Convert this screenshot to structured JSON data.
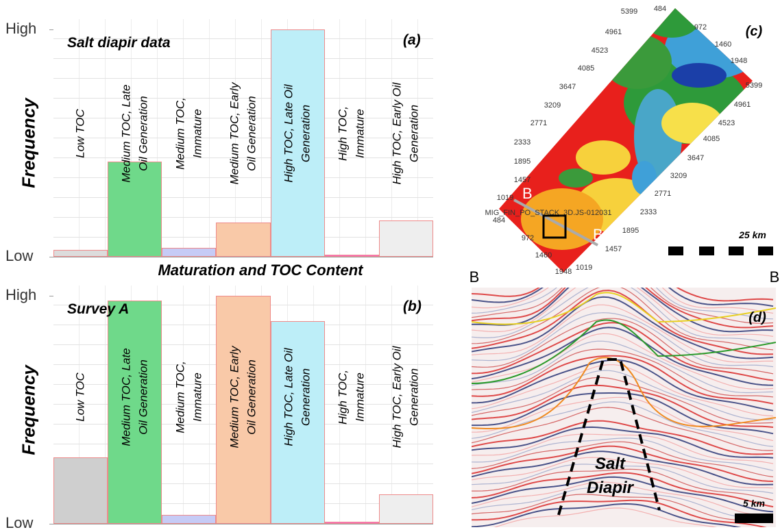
{
  "chart_data": [
    {
      "type": "bar",
      "title": "Salt diapir data",
      "panel": "(a)",
      "ylabel": "Frequency",
      "categories": [
        "Low TOC",
        "Medium TOC, Late Oil Generation",
        "Medium TOC, Immature",
        "Medium TOC, Early Oil Generation",
        "High TOC, Late Oil Generation",
        "High TOC, Immature",
        "High TOC, Early Oil Generation"
      ],
      "values": [
        3,
        42,
        4,
        15,
        100,
        1,
        16
      ],
      "colors": [
        "#dcdcdc",
        "#6fd98a",
        "#c6cbf6",
        "#f9c9a8",
        "#bdeef8",
        "#ff66c8",
        "#eeeeee"
      ],
      "ylim": [
        0,
        100
      ],
      "yticks": [
        {
          "value": 0,
          "label": "Low"
        },
        {
          "value": 100,
          "label": "High"
        }
      ],
      "grid": true
    },
    {
      "type": "bar",
      "title": "Survey A",
      "panel": "(b)",
      "ylabel": "Frequency",
      "categories": [
        "Low TOC",
        "Medium TOC, Late Oil Generation",
        "Medium TOC, Immature",
        "Medium TOC, Early Oil Generation",
        "High TOC, Late Oil Generation",
        "High TOC, Immature",
        "High TOC, Early Oil Generation"
      ],
      "values": [
        29,
        98,
        4,
        100,
        89,
        1,
        13
      ],
      "colors": [
        "#cfcfcf",
        "#6fd98a",
        "#c6cbf6",
        "#f9c9a8",
        "#bdeef8",
        "#ff66c8",
        "#eeeeee"
      ],
      "ylim": [
        0,
        100
      ],
      "yticks": [
        {
          "value": 0,
          "label": "Low"
        },
        {
          "value": 100,
          "label": "High"
        }
      ],
      "grid": true
    }
  ],
  "caption": "Maturation and TOC Content",
  "map": {
    "panel": "(c)",
    "labels": [
      "5399",
      "484",
      "972",
      "1460",
      "1948",
      "5399",
      "4961",
      "4523",
      "4085",
      "3647",
      "3209",
      "2771",
      "2333",
      "1895",
      "1457",
      "1019",
      "4961",
      "4523",
      "4085",
      "3647",
      "3209",
      "2771",
      "2333",
      "1895",
      "1457",
      "1019",
      "MIG_FIN_PO_STACK_3D.JS-012031",
      "484",
      "972",
      "1460",
      "1948"
    ],
    "ends": [
      "B",
      "B"
    ],
    "scale": "25 km"
  },
  "section": {
    "panel": "(d)",
    "ends": [
      "B",
      "B"
    ],
    "annotation": [
      "Salt",
      "Diapir"
    ],
    "scale": "5 km"
  }
}
